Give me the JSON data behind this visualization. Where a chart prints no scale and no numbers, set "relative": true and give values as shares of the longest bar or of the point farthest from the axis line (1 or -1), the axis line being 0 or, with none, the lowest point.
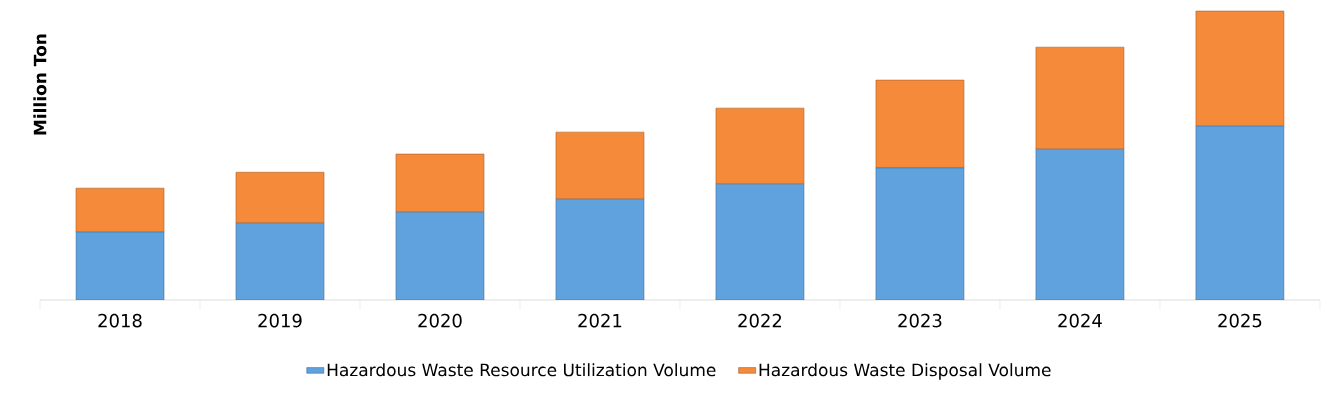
{
  "chart_data": {
    "type": "bar",
    "stacked": true,
    "relative": true,
    "ylabel": "Million Ton",
    "categories": [
      "2018",
      "2019",
      "2020",
      "2021",
      "2022",
      "2023",
      "2024",
      "2025"
    ],
    "series": [
      {
        "name": "Hazardous Waste Resource Utilization Volume",
        "color": "#5fa2dd",
        "values": [
          0.235,
          0.266,
          0.304,
          0.349,
          0.401,
          0.457,
          0.522,
          0.602
        ]
      },
      {
        "name": "Hazardous Waste Disposal Volume",
        "color": "#f58a3a",
        "values": [
          0.152,
          0.176,
          0.201,
          0.232,
          0.263,
          0.304,
          0.353,
          0.398
        ]
      }
    ],
    "legend": "bottom",
    "grid": false
  }
}
